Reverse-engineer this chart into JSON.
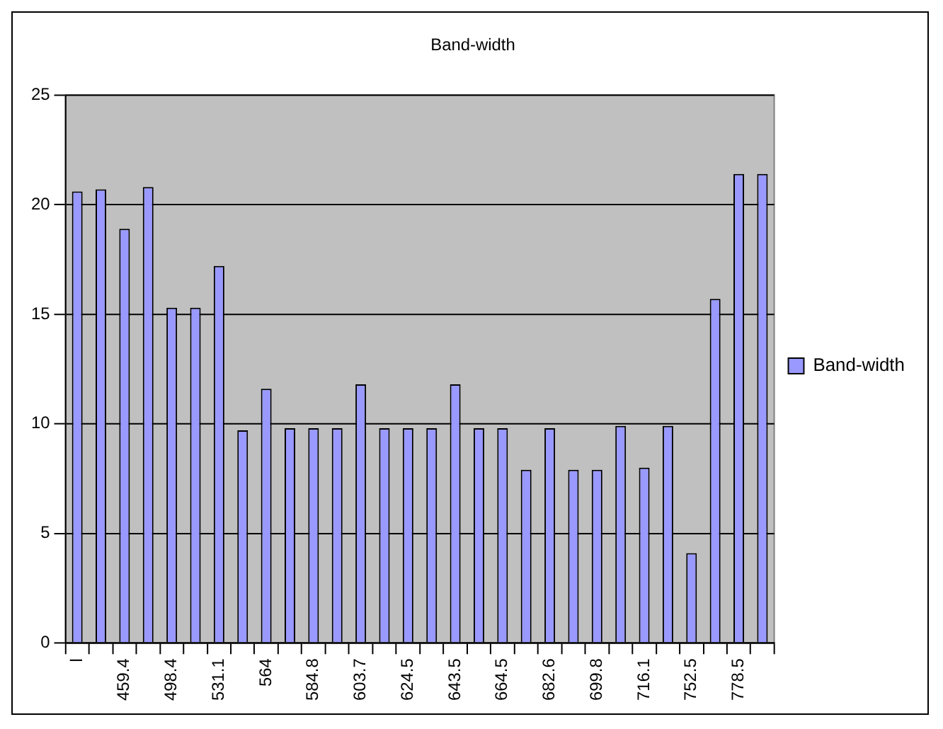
{
  "chart_data": {
    "type": "bar",
    "title": "Band-width",
    "categories": [
      "l",
      null,
      "459.4",
      null,
      "498.4",
      null,
      "531.1",
      null,
      "564",
      null,
      "584.8",
      null,
      "603.7",
      null,
      "624.5",
      null,
      "643.5",
      null,
      "664.5",
      null,
      "682.6",
      null,
      "699.8",
      null,
      "716.1",
      null,
      "752.5",
      null,
      "778.5",
      null
    ],
    "series": [
      {
        "name": "Band-width",
        "color": "#9999ff",
        "values": [
          20.6,
          20.7,
          18.9,
          20.8,
          15.3,
          15.3,
          17.2,
          9.7,
          11.6,
          9.8,
          9.8,
          9.8,
          11.8,
          9.8,
          9.8,
          9.8,
          11.8,
          9.8,
          9.8,
          7.9,
          9.8,
          7.9,
          7.9,
          9.9,
          8.0,
          9.9,
          4.1,
          15.7,
          21.4,
          21.4
        ]
      }
    ],
    "ylim": [
      0,
      25
    ],
    "yticks": [
      0,
      5,
      10,
      15,
      20,
      25
    ],
    "grid": "y",
    "legend": "right"
  }
}
